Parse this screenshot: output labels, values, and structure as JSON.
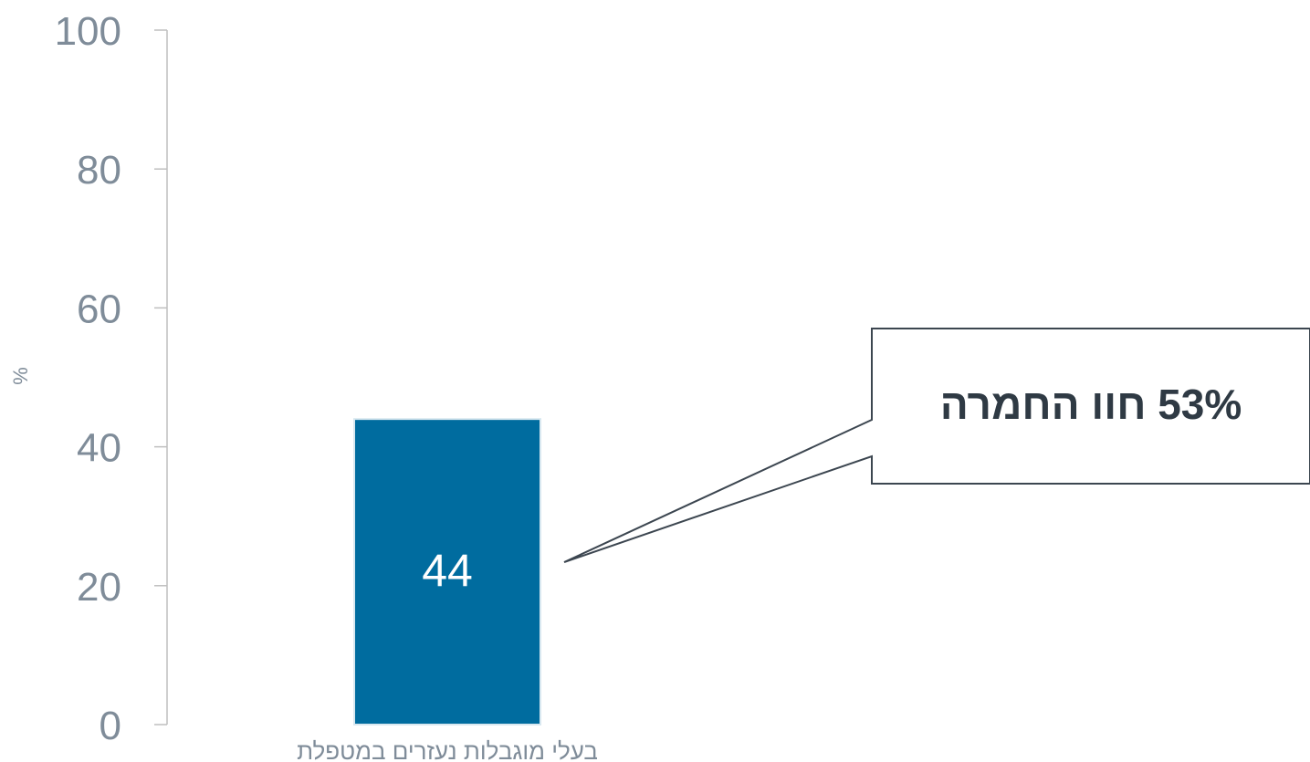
{
  "chart_data": {
    "type": "bar",
    "categories": [
      "בעלי מוגבלות נעזרים במטפלת"
    ],
    "values": [
      44
    ],
    "data_labels": [
      "44"
    ],
    "title": "",
    "xlabel": "",
    "ylabel": "%",
    "ylim": [
      0,
      100
    ],
    "yticks": [
      "0",
      "20",
      "40",
      "60",
      "80",
      "100"
    ],
    "grid": false,
    "legend": "none",
    "annotation": {
      "text": "53% חוו החמרה"
    },
    "colors": {
      "bar": "#006C9F",
      "bar_outline": "#D9E8F0",
      "axis": "#BFBFBF",
      "tick_text": "#7F8C99",
      "data_label": "#FFFFFF",
      "callout_border": "#3C4650",
      "callout_text": "#2F3A44"
    }
  }
}
